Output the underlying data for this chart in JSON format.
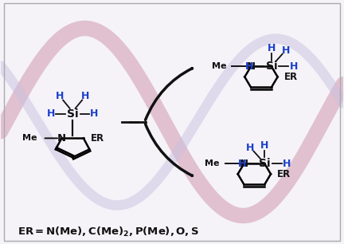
{
  "bg_color": "#f5f3f8",
  "wave1_color": "#d4a0b5",
  "wave2_color": "#c8c0e0",
  "blue_color": "#1a3fcc",
  "black_color": "#111111",
  "figsize": [
    4.32,
    3.06
  ],
  "dpi": 100,
  "xlim": [
    0,
    10
  ],
  "ylim": [
    0,
    7
  ]
}
